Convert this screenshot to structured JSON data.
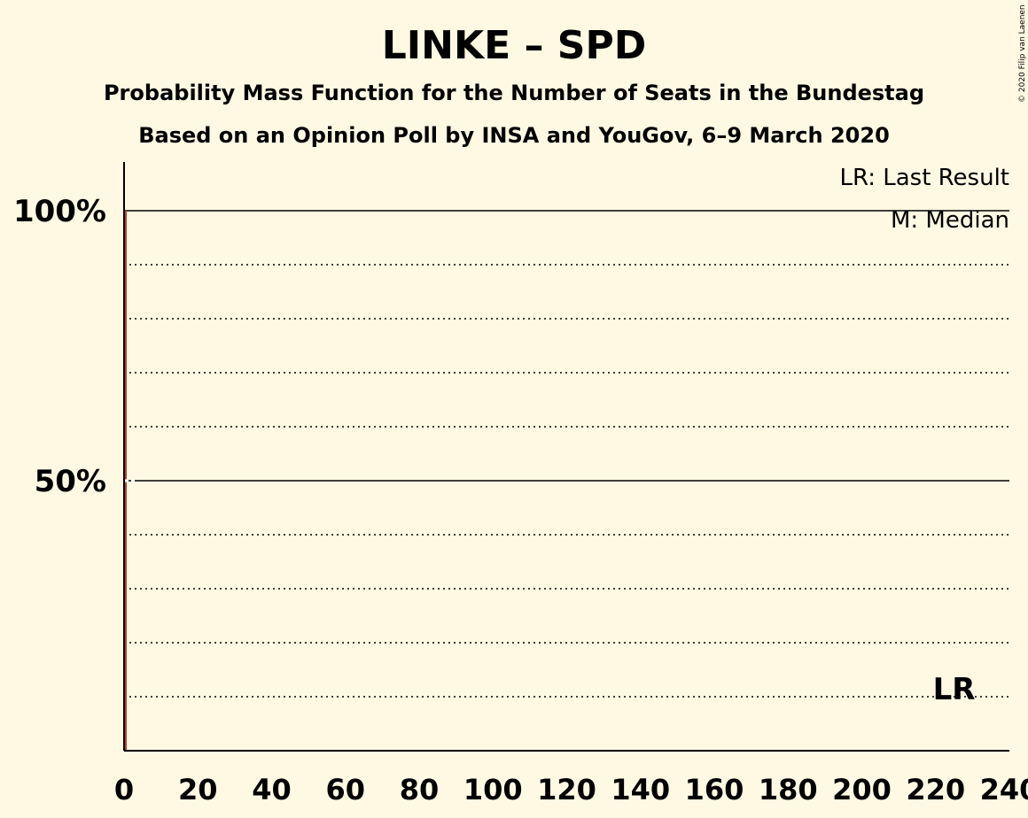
{
  "chart_data": {
    "type": "bar",
    "title": "LINKE – SPD",
    "subtitle": "Probability Mass Function for the Number of Seats in the Bundestag",
    "subtitle2": "Based on an Opinion Poll by INSA and YouGov, 6–9 March 2020",
    "copyright": "© 2020 Filip van Laenen",
    "legend": [
      "LR: Last Result",
      "M: Median"
    ],
    "xlim": [
      0,
      240
    ],
    "ylim": [
      0,
      1.1
    ],
    "x_ticks": [
      0,
      20,
      40,
      60,
      80,
      100,
      120,
      140,
      160,
      180,
      200,
      220,
      240
    ],
    "y_ticks": [
      {
        "value": 1.0,
        "label": "100%"
      },
      {
        "value": 0.5,
        "label": "50%"
      }
    ],
    "gridlines_dotted": [
      0.1,
      0.2,
      0.3,
      0.4,
      0.6,
      0.7,
      0.8,
      0.9
    ],
    "gridlines_solid": [
      0.5,
      1.0
    ],
    "bars": [
      {
        "seats": 0,
        "probability": 1.0,
        "color": "#c0392b"
      }
    ],
    "last_result": {
      "seats": 225,
      "label": "LR"
    },
    "median_seats": 0,
    "colors": {
      "background": "#fff9e3",
      "bar": "#c0392b",
      "axis": "#000000"
    }
  }
}
